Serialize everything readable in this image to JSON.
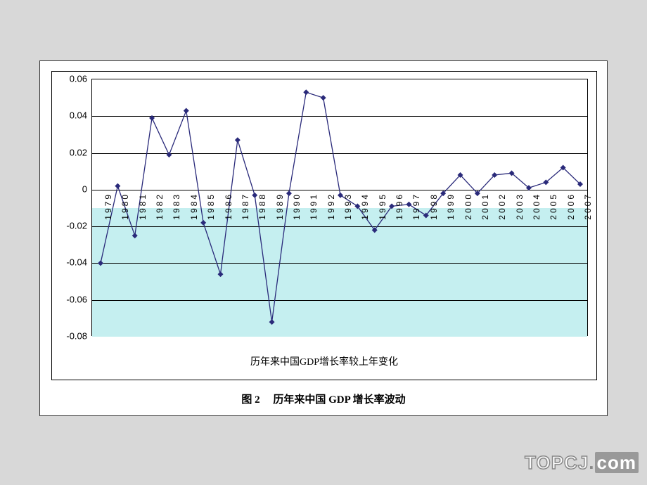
{
  "chart": {
    "type": "line",
    "legend_label": "历年来中国GDP增长率较上年变化",
    "caption_prefix": "图 2",
    "caption_text": "历年来中国 GDP 增长率波动",
    "y_axis": {
      "min": -0.08,
      "max": 0.06,
      "ticks": [
        0.06,
        0.04,
        0.02,
        0,
        -0.02,
        -0.04,
        -0.06,
        -0.08
      ],
      "tick_labels": [
        "0.06",
        "0.04",
        "0.02",
        "0",
        "-0.02",
        "-0.04",
        "-0.06",
        "-0.08"
      ],
      "label_fontsize": 13
    },
    "x_categories": [
      "1979",
      "1980",
      "1981",
      "1982",
      "1983",
      "1984",
      "1985",
      "1986",
      "1987",
      "1988",
      "1989",
      "1990",
      "1991",
      "1992",
      "1993",
      "1994",
      "1995",
      "1996",
      "1997",
      "1998",
      "1999",
      "2000",
      "2001",
      "2002",
      "2003",
      "2004",
      "2005",
      "2006",
      "2007"
    ],
    "values": [
      -0.04,
      0.002,
      -0.025,
      0.039,
      0.019,
      0.043,
      -0.018,
      -0.046,
      0.027,
      -0.003,
      -0.072,
      -0.002,
      0.053,
      0.05,
      -0.003,
      -0.009,
      -0.022,
      -0.009,
      -0.008,
      -0.014,
      -0.002,
      0.008,
      -0.002,
      0.008,
      0.009,
      0.001,
      0.004,
      0.012,
      0.003
    ],
    "line_color": "#2a2a7a",
    "marker_color": "#2a2a7a",
    "marker_style": "diamond",
    "marker_size": 4,
    "line_width": 1.3,
    "background_color": "#ffffff",
    "lower_fill_color": "#c5eff0",
    "lower_fill_from_y": -0.01,
    "grid_color": "#000000",
    "x_label_rotation": -90,
    "x_label_baseline_y": 0
  },
  "page": {
    "outer_bg": "#d8d8d8",
    "frame_bg": "#ffffff"
  },
  "watermark": {
    "text_main": "TOPCJ",
    "text_suffix": "com",
    "dot": "."
  }
}
